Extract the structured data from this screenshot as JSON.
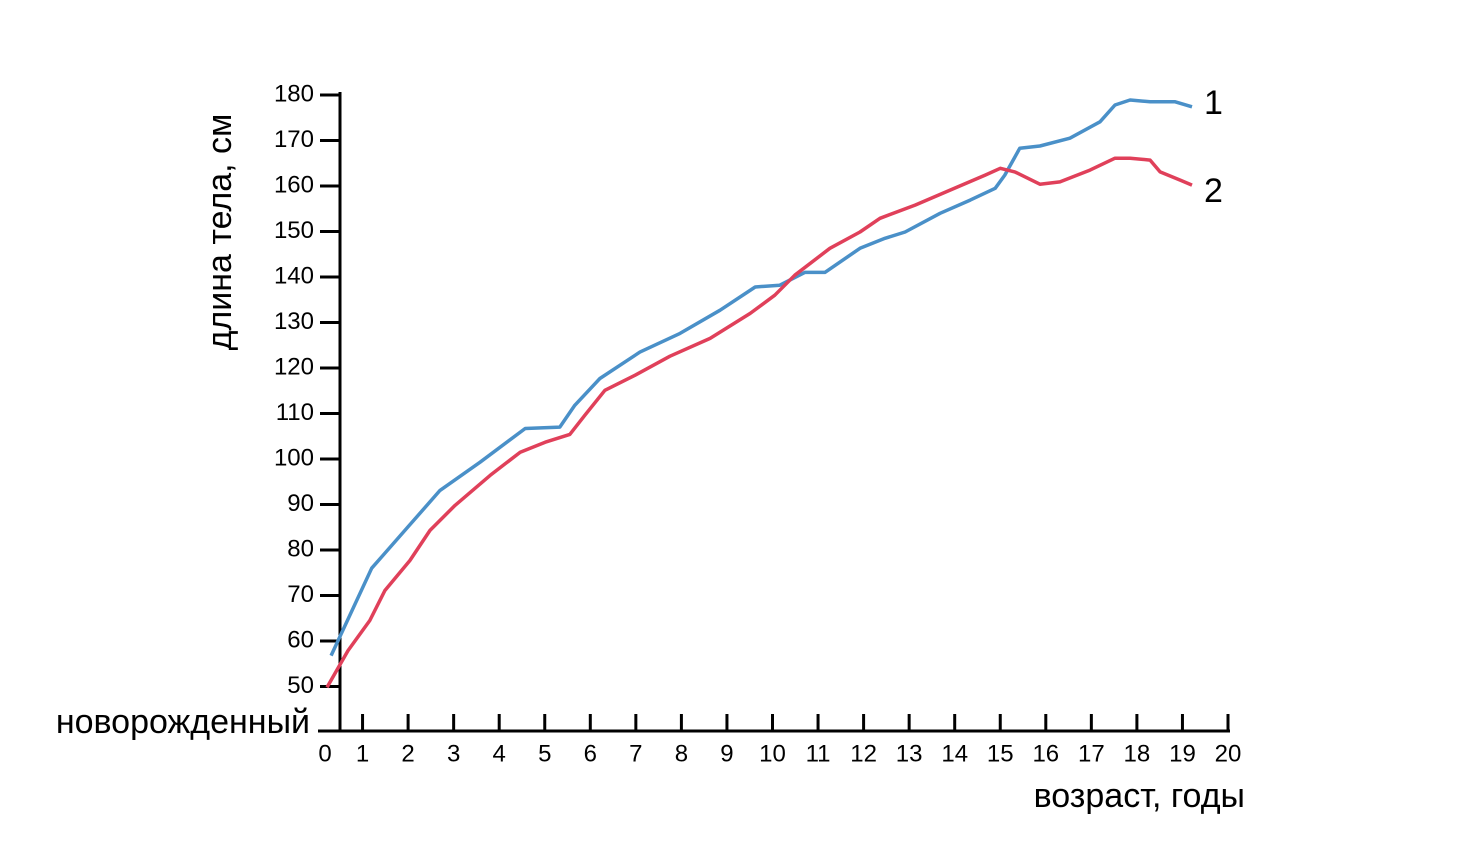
{
  "chart_data": {
    "type": "line",
    "ylabel": "длина тела, см",
    "xlabel": "возраст, годы",
    "annotation": "новорожденный",
    "xlim": [
      0,
      20
    ],
    "xticks": [
      0,
      1,
      2,
      3,
      4,
      5,
      6,
      7,
      8,
      9,
      10,
      11,
      12,
      13,
      14,
      15,
      16,
      17,
      18,
      19,
      20
    ],
    "ylim": [
      40,
      180
    ],
    "yticks": [
      50,
      60,
      70,
      80,
      90,
      100,
      110,
      120,
      130,
      140,
      150,
      160,
      170,
      180
    ],
    "series": [
      {
        "name": "1",
        "color": "#4a90c8",
        "x": [
          0.31,
          1.2,
          1.93,
          2.7,
          3.58,
          4.57,
          5.33,
          5.66,
          6.21,
          7.09,
          7.97,
          8.85,
          9.62,
          10.16,
          10.71,
          11.15,
          11.92,
          12.47,
          12.91,
          13.68,
          14.34,
          14.89,
          15.1,
          15.43,
          15.87,
          16.53,
          17.19,
          17.52,
          17.85,
          18.29,
          18.84,
          19.21
        ],
        "values": [
          56.8,
          76,
          84.3,
          93.1,
          99.3,
          106.7,
          107,
          111.8,
          117.7,
          123.5,
          127.6,
          132.7,
          137.8,
          138.2,
          141,
          141,
          146.3,
          148.5,
          149.9,
          154,
          156.9,
          159.5,
          162.4,
          168.3,
          168.8,
          170.5,
          174.1,
          177.8,
          178.9,
          178.5,
          178.5,
          177.4
        ]
      },
      {
        "name": "2",
        "color": "#e0405a",
        "x": [
          0.22,
          0.68,
          1.16,
          1.49,
          2.04,
          2.48,
          3.03,
          3.8,
          4.46,
          5.01,
          5.55,
          5.88,
          6.32,
          6.98,
          7.75,
          8.63,
          9.51,
          10.05,
          10.49,
          11.26,
          11.92,
          12.36,
          13.13,
          13.9,
          14.67,
          15,
          15.32,
          15.87,
          16.31,
          16.97,
          17.52,
          17.85,
          18.29,
          18.51,
          18.95,
          19.21
        ],
        "values": [
          49.8,
          57.9,
          64.5,
          71.1,
          77.7,
          84.3,
          89.8,
          96.4,
          101.5,
          103.7,
          105.4,
          109.6,
          115.1,
          118.4,
          122.6,
          126.5,
          132,
          136,
          140.4,
          146.3,
          149.9,
          152.9,
          155.8,
          159.1,
          162.4,
          163.9,
          163.1,
          160.4,
          160.9,
          163.5,
          166.1,
          166.1,
          165.7,
          163.1,
          161.3,
          160.2
        ]
      }
    ]
  }
}
